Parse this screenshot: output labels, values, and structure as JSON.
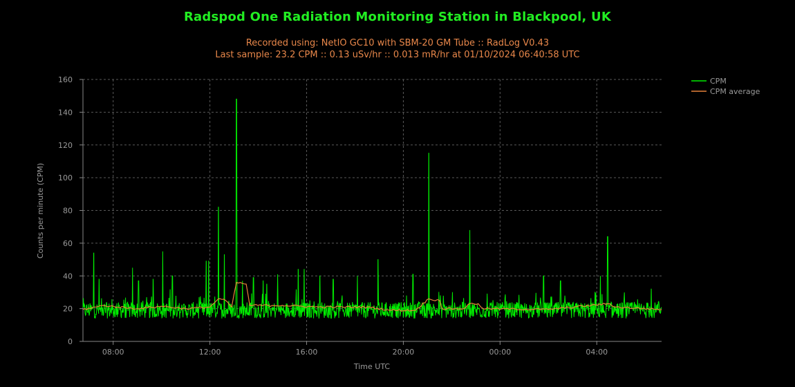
{
  "chart_data": {
    "type": "line",
    "title": "Radspod One Radiation Monitoring Station in Blackpool, UK",
    "subtitle_lines": [
      "Recorded using: NetIO GC10 with SBM-20 GM Tube :: RadLog V0.43",
      "Last sample: 23.2 CPM :: 0.13 uSv/hr :: 0.013 mR/hr at 01/10/2024 06:40:58 UTC"
    ],
    "xlabel": "Time UTC",
    "ylabel": "Counts per minute (CPM)",
    "x_axis": {
      "unit": "hours",
      "range": [
        6.75,
        30.68
      ],
      "ticks": [
        {
          "value": 8,
          "label": "08:00"
        },
        {
          "value": 12,
          "label": "12:00"
        },
        {
          "value": 16,
          "label": "16:00"
        },
        {
          "value": 20,
          "label": "20:00"
        },
        {
          "value": 24,
          "label": "00:00"
        },
        {
          "value": 28,
          "label": "04:00"
        }
      ]
    },
    "ylim": [
      0,
      160
    ],
    "yticks": [
      0,
      20,
      40,
      60,
      80,
      100,
      120,
      140,
      160
    ],
    "grid": true,
    "legend_position": "top-right",
    "series": [
      {
        "name": "CPM",
        "color": "#00ee00",
        "baseline": 19,
        "noise": 5,
        "peaks": [
          [
            7.2,
            54
          ],
          [
            7.42,
            38
          ],
          [
            8.8,
            45
          ],
          [
            9.05,
            37
          ],
          [
            9.65,
            38
          ],
          [
            10.05,
            55
          ],
          [
            10.45,
            40
          ],
          [
            11.85,
            49
          ],
          [
            11.95,
            49
          ],
          [
            12.35,
            82
          ],
          [
            12.6,
            53
          ],
          [
            13.1,
            148
          ],
          [
            13.35,
            37
          ],
          [
            13.8,
            39
          ],
          [
            14.2,
            37
          ],
          [
            14.35,
            35
          ],
          [
            14.8,
            41
          ],
          [
            15.65,
            44
          ],
          [
            15.9,
            44
          ],
          [
            16.55,
            40
          ],
          [
            17.1,
            38
          ],
          [
            18.1,
            40
          ],
          [
            18.95,
            50
          ],
          [
            20.4,
            41
          ],
          [
            21.05,
            115
          ],
          [
            22.75,
            68
          ],
          [
            25.8,
            40
          ],
          [
            26.5,
            37
          ],
          [
            28.15,
            40
          ],
          [
            28.45,
            64
          ],
          [
            30.25,
            32
          ]
        ]
      },
      {
        "name": "CPM average",
        "color": "#e8833a",
        "baseline": 19.5,
        "segments": [
          [
            6.75,
            19.5
          ],
          [
            7.3,
            21
          ],
          [
            7.6,
            22
          ],
          [
            8.2,
            21
          ],
          [
            9.0,
            20
          ],
          [
            10.0,
            21.5
          ],
          [
            11.0,
            20
          ],
          [
            12.0,
            21
          ],
          [
            12.35,
            26
          ],
          [
            12.65,
            25
          ],
          [
            12.9,
            21
          ],
          [
            13.1,
            36
          ],
          [
            13.5,
            35
          ],
          [
            13.65,
            22
          ],
          [
            15.0,
            22
          ],
          [
            16.5,
            21
          ],
          [
            18.5,
            21
          ],
          [
            19.5,
            19
          ],
          [
            20.5,
            19
          ],
          [
            21.05,
            26
          ],
          [
            21.5,
            25
          ],
          [
            21.6,
            20
          ],
          [
            22.5,
            20
          ],
          [
            22.75,
            23
          ],
          [
            23.1,
            23
          ],
          [
            23.3,
            20
          ],
          [
            26.0,
            19.5
          ],
          [
            28.45,
            23
          ],
          [
            28.8,
            21
          ],
          [
            30.68,
            19.5
          ]
        ]
      }
    ]
  }
}
